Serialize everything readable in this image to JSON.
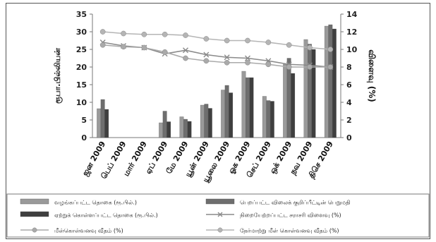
{
  "chart_data": {
    "type": "bar",
    "categories": [
      "ஜன 2009",
      "பெப் 2009",
      "மார் 2009",
      "ஏப் 2009",
      "மே 2009",
      "யூன் 2009",
      "யூலை 2009",
      "ஓக 2009",
      "செப் 2009",
      "ஒக் 2009",
      "நவ 2009",
      "திசெ 2009"
    ],
    "left_axis": {
      "label": "ரூபா.பில்லியன்",
      "min": 0,
      "max": 35,
      "ticks": [
        0,
        5,
        10,
        15,
        20,
        25,
        30,
        35
      ]
    },
    "right_axis": {
      "label": "விளைவு (%)",
      "min": 0,
      "max": 14,
      "ticks": [
        0,
        2,
        4,
        6,
        8,
        10,
        12,
        14
      ]
    },
    "bar_series": [
      {
        "name": "வழங்கப்பட்ட தொகை (ரூ.பில்.)",
        "color": "#9a9a9a",
        "values": [
          8.2,
          null,
          null,
          4.2,
          5.9,
          9.2,
          13.5,
          18.8,
          11.7,
          20.8,
          27.8,
          31.6
        ]
      },
      {
        "name": "பெறப்பட்ட விலைக் குறிப்பீட்டின் பெறுமதி",
        "color": "#6e6e6e",
        "values": [
          10.8,
          null,
          null,
          7.5,
          5.2,
          9.5,
          14.8,
          17.0,
          10.5,
          22.5,
          26.5,
          32.0
        ]
      },
      {
        "name": "ஏற்றுக் கொள்ளப்பட்ட தொகை (ரூ.பில்.)",
        "color": "#3f3f3f",
        "values": [
          8.0,
          null,
          null,
          4.5,
          4.6,
          8.3,
          12.7,
          17.0,
          10.3,
          18.2,
          25.0,
          30.8
        ]
      }
    ],
    "line_series": [
      {
        "name": "நிறையேற்றப்பட்ட சராசரி விளைவு (%)",
        "color": "#8a8a8a",
        "marker": "x",
        "values": [
          10.8,
          10.4,
          10.2,
          9.5,
          9.9,
          9.4,
          9.1,
          9.0,
          8.7,
          8.3,
          8.2,
          8.0
        ]
      },
      {
        "name": "மீள்கொள்வனவு வீதம் (%)",
        "color": "#aaaaaa",
        "marker": "circle",
        "values": [
          10.5,
          10.3,
          10.2,
          9.7,
          9.0,
          8.7,
          8.5,
          8.5,
          8.3,
          8.0,
          8.0,
          8.0
        ]
      },
      {
        "name": "நேர்மாற்று மீள் கொள்வனவு வீதம் (%)",
        "color": "#b5b5b5",
        "marker": "circle",
        "values": [
          12.0,
          11.8,
          11.7,
          11.7,
          11.6,
          11.2,
          11.0,
          11.0,
          10.8,
          10.5,
          10.2,
          10.0
        ]
      }
    ],
    "legend": [
      {
        "label": "வழங்கப்பட்ட தொகை (ரூ.பில்.)",
        "kind": "bar",
        "color": "#9a9a9a"
      },
      {
        "label": "பெறப்பட்ட விலைக் குறிப்பீட்டின் பெறுமதி",
        "kind": "bar",
        "color": "#6e6e6e"
      },
      {
        "label": "ஏற்றுக் கொள்ளப்பட்ட தொகை (ரூ.பில்.)",
        "kind": "bar",
        "color": "#3f3f3f"
      },
      {
        "label": "நிறையேற்றப்பட்ட சராசரி விளைவு (%)",
        "kind": "line-x",
        "color": "#8a8a8a"
      },
      {
        "label": "மீள்கொள்வனவு வீதம் (%)",
        "kind": "line-circle",
        "color": "#aaaaaa"
      },
      {
        "label": "நேர்மாற்று மீள் கொள்வனவு வீதம் (%)",
        "kind": "line-circle",
        "color": "#b5b5b5"
      }
    ],
    "legend_position": "bottom",
    "grid": false
  }
}
